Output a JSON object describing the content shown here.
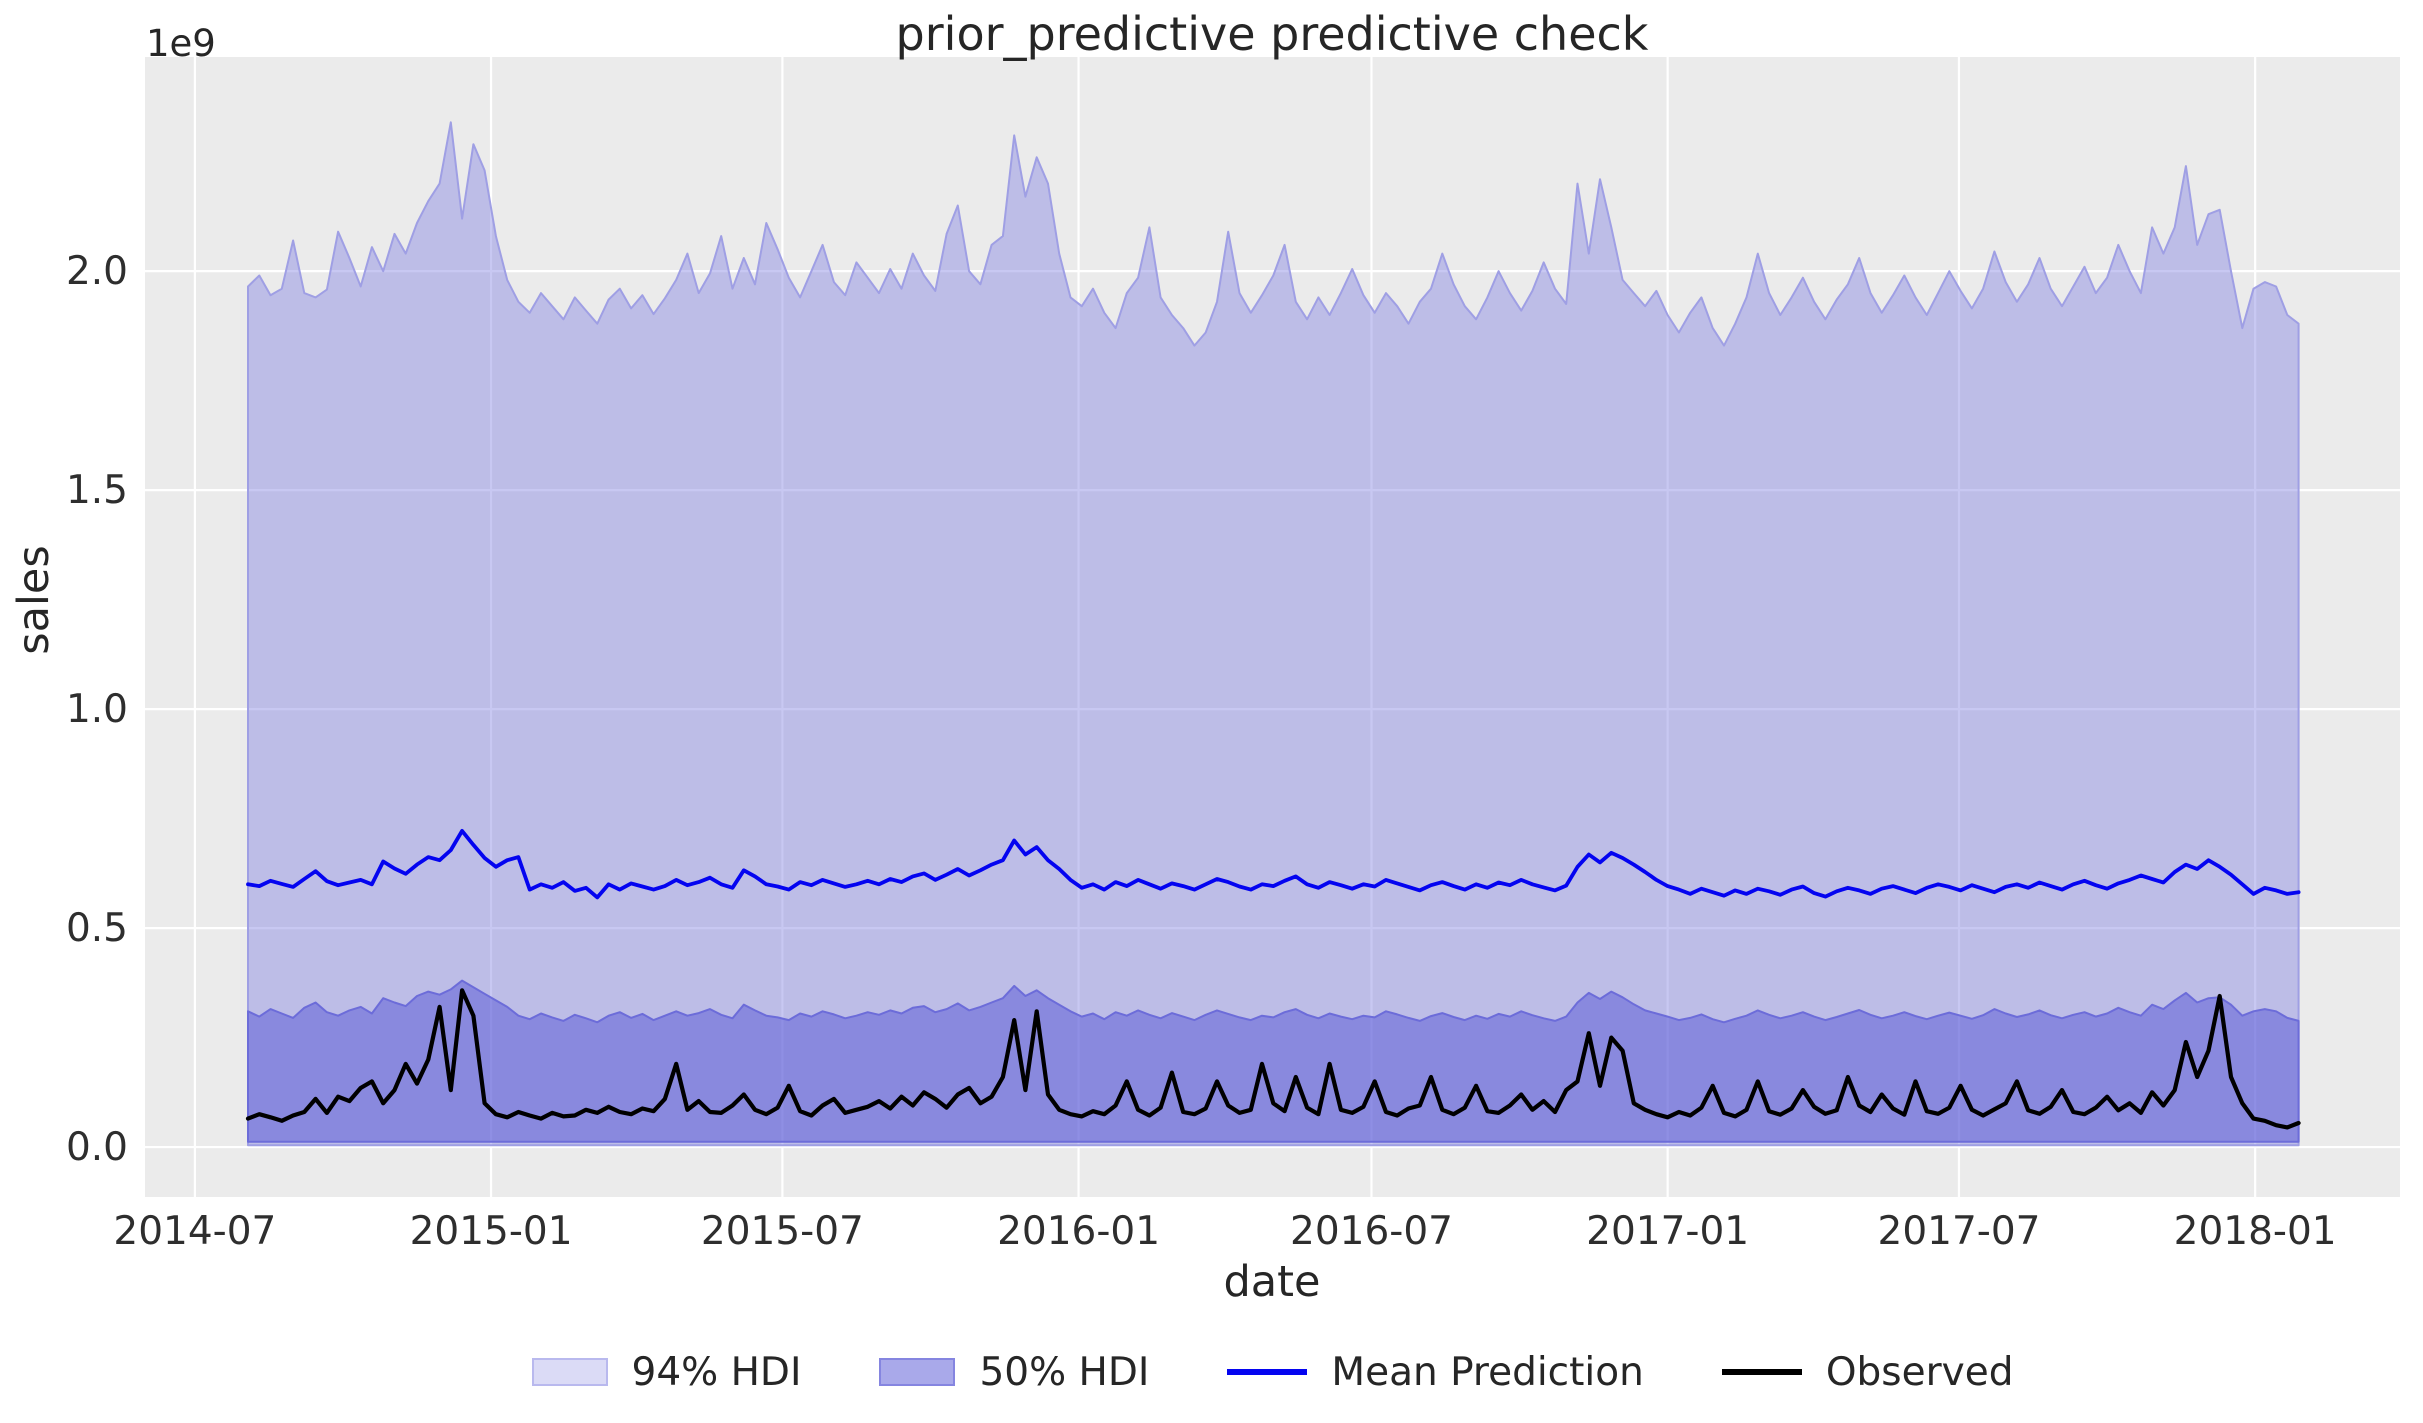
{
  "figure": {
    "background": "#ffffff",
    "axes_background": "#ebebeb",
    "grid_color": "#ffffff",
    "text_color": "#262626"
  },
  "chart_data": {
    "type": "line",
    "title": "prior_predictive predictive check",
    "xlabel": "date",
    "ylabel": "sales",
    "y_offset_label": "1e9",
    "y_unit": "1e9",
    "grid": true,
    "legend_position": "bottom-center",
    "xlim": [
      "2014-05-31",
      "2018-04-01"
    ],
    "ylim": [
      -0.114,
      2.489
    ],
    "x_ticks": [
      {
        "date": "2014-07-01",
        "label": "2014-07"
      },
      {
        "date": "2015-01-01",
        "label": "2015-01"
      },
      {
        "date": "2015-07-01",
        "label": "2015-07"
      },
      {
        "date": "2016-01-01",
        "label": "2016-01"
      },
      {
        "date": "2016-07-01",
        "label": "2016-07"
      },
      {
        "date": "2017-01-01",
        "label": "2017-01"
      },
      {
        "date": "2017-07-01",
        "label": "2017-07"
      },
      {
        "date": "2018-01-01",
        "label": "2018-01"
      }
    ],
    "y_ticks": [
      {
        "value": 0.0,
        "label": "0.0"
      },
      {
        "value": 0.5,
        "label": "0.5"
      },
      {
        "value": 1.0,
        "label": "1.0"
      },
      {
        "value": 1.5,
        "label": "1.5"
      },
      {
        "value": 2.0,
        "label": "2.0"
      }
    ],
    "x_start_date": "2014-08-03",
    "x_step_days": 7,
    "n_points": 183,
    "series": [
      {
        "name": "94% HDI",
        "kind": "band",
        "fill": "rgba(134,134,227,0.45)",
        "edge": "#9f9fe4",
        "legend_fill": "#dbdbf6",
        "legend_edge": "#b9b9ee",
        "lo_const": 0.004,
        "hi": [
          1.965,
          1.99,
          1.945,
          1.96,
          2.07,
          1.95,
          1.94,
          1.958,
          2.09,
          2.03,
          1.965,
          2.055,
          2.0,
          2.085,
          2.04,
          2.11,
          2.16,
          2.2,
          2.34,
          2.12,
          2.29,
          2.23,
          2.08,
          1.98,
          1.93,
          1.905,
          1.95,
          1.92,
          1.89,
          1.94,
          1.91,
          1.88,
          1.935,
          1.96,
          1.915,
          1.945,
          1.902,
          1.938,
          1.98,
          2.04,
          1.95,
          1.995,
          2.08,
          1.96,
          2.03,
          1.97,
          2.11,
          2.05,
          1.985,
          1.94,
          2.0,
          2.06,
          1.975,
          1.945,
          2.02,
          1.985,
          1.95,
          2.005,
          1.96,
          2.04,
          1.99,
          1.955,
          2.085,
          2.15,
          2.0,
          1.97,
          2.06,
          2.08,
          2.31,
          2.17,
          2.26,
          2.2,
          2.04,
          1.94,
          1.92,
          1.96,
          1.905,
          1.87,
          1.95,
          1.985,
          2.1,
          1.94,
          1.9,
          1.87,
          1.83,
          1.86,
          1.93,
          2.09,
          1.95,
          1.905,
          1.945,
          1.99,
          2.06,
          1.93,
          1.89,
          1.94,
          1.9,
          1.95,
          2.005,
          1.945,
          1.905,
          1.95,
          1.92,
          1.88,
          1.93,
          1.96,
          2.04,
          1.97,
          1.92,
          1.89,
          1.94,
          2.0,
          1.95,
          1.91,
          1.955,
          2.02,
          1.96,
          1.925,
          2.2,
          2.04,
          2.21,
          2.1,
          1.98,
          1.95,
          1.92,
          1.955,
          1.9,
          1.86,
          1.905,
          1.94,
          1.87,
          1.83,
          1.88,
          1.94,
          2.04,
          1.95,
          1.9,
          1.94,
          1.985,
          1.93,
          1.89,
          1.935,
          1.97,
          2.03,
          1.95,
          1.905,
          1.945,
          1.99,
          1.94,
          1.9,
          1.95,
          2.0,
          1.955,
          1.915,
          1.96,
          2.045,
          1.975,
          1.93,
          1.97,
          2.03,
          1.96,
          1.92,
          1.965,
          2.01,
          1.95,
          1.985,
          2.06,
          2.0,
          1.95,
          2.1,
          2.04,
          2.1,
          2.24,
          2.06,
          2.13,
          2.14,
          2.0,
          1.87,
          1.96,
          1.975,
          1.965,
          1.9,
          1.88
        ]
      },
      {
        "name": "50% HDI",
        "kind": "band",
        "fill": "rgba(90,90,214,0.52)",
        "edge": "#6c6cd9",
        "legend_fill": "#a9a9ea",
        "legend_edge": "#8585e0",
        "lo_const": 0.012,
        "hi": [
          0.31,
          0.298,
          0.315,
          0.305,
          0.295,
          0.318,
          0.33,
          0.308,
          0.3,
          0.312,
          0.32,
          0.305,
          0.34,
          0.33,
          0.322,
          0.345,
          0.355,
          0.348,
          0.36,
          0.38,
          0.365,
          0.35,
          0.335,
          0.32,
          0.3,
          0.292,
          0.305,
          0.296,
          0.288,
          0.302,
          0.294,
          0.285,
          0.3,
          0.308,
          0.295,
          0.304,
          0.29,
          0.3,
          0.31,
          0.3,
          0.306,
          0.315,
          0.302,
          0.294,
          0.325,
          0.312,
          0.3,
          0.296,
          0.29,
          0.305,
          0.298,
          0.31,
          0.303,
          0.294,
          0.3,
          0.308,
          0.302,
          0.312,
          0.305,
          0.318,
          0.322,
          0.308,
          0.315,
          0.328,
          0.312,
          0.32,
          0.33,
          0.34,
          0.368,
          0.345,
          0.358,
          0.34,
          0.325,
          0.31,
          0.298,
          0.305,
          0.292,
          0.308,
          0.3,
          0.312,
          0.302,
          0.294,
          0.306,
          0.298,
          0.29,
          0.302,
          0.312,
          0.304,
          0.296,
          0.29,
          0.3,
          0.296,
          0.308,
          0.315,
          0.302,
          0.294,
          0.305,
          0.298,
          0.292,
          0.3,
          0.296,
          0.31,
          0.303,
          0.295,
          0.288,
          0.299,
          0.306,
          0.297,
          0.29,
          0.3,
          0.293,
          0.304,
          0.298,
          0.31,
          0.301,
          0.294,
          0.288,
          0.298,
          0.33,
          0.352,
          0.338,
          0.355,
          0.342,
          0.326,
          0.312,
          0.305,
          0.298,
          0.29,
          0.295,
          0.303,
          0.292,
          0.285,
          0.293,
          0.3,
          0.312,
          0.302,
          0.294,
          0.3,
          0.308,
          0.298,
          0.29,
          0.297,
          0.305,
          0.313,
          0.302,
          0.294,
          0.3,
          0.308,
          0.299,
          0.292,
          0.3,
          0.307,
          0.3,
          0.293,
          0.301,
          0.315,
          0.305,
          0.297,
          0.303,
          0.312,
          0.301,
          0.294,
          0.302,
          0.308,
          0.298,
          0.305,
          0.318,
          0.308,
          0.3,
          0.325,
          0.315,
          0.335,
          0.352,
          0.33,
          0.34,
          0.342,
          0.325,
          0.3,
          0.31,
          0.315,
          0.31,
          0.295,
          0.288
        ]
      },
      {
        "name": "Mean Prediction",
        "kind": "line",
        "color": "#0404f0",
        "values": [
          0.6,
          0.596,
          0.608,
          0.601,
          0.594,
          0.612,
          0.63,
          0.607,
          0.598,
          0.604,
          0.61,
          0.6,
          0.652,
          0.636,
          0.624,
          0.645,
          0.662,
          0.655,
          0.678,
          0.722,
          0.69,
          0.66,
          0.64,
          0.655,
          0.662,
          0.588,
          0.6,
          0.592,
          0.605,
          0.585,
          0.592,
          0.57,
          0.6,
          0.588,
          0.602,
          0.595,
          0.588,
          0.596,
          0.61,
          0.598,
          0.605,
          0.615,
          0.6,
          0.592,
          0.632,
          0.618,
          0.6,
          0.595,
          0.588,
          0.605,
          0.598,
          0.61,
          0.602,
          0.594,
          0.6,
          0.608,
          0.6,
          0.612,
          0.605,
          0.618,
          0.625,
          0.61,
          0.622,
          0.635,
          0.62,
          0.632,
          0.645,
          0.655,
          0.7,
          0.668,
          0.685,
          0.655,
          0.635,
          0.61,
          0.592,
          0.6,
          0.588,
          0.605,
          0.596,
          0.61,
          0.6,
          0.59,
          0.602,
          0.596,
          0.588,
          0.6,
          0.612,
          0.605,
          0.595,
          0.588,
          0.6,
          0.596,
          0.608,
          0.618,
          0.6,
          0.592,
          0.605,
          0.598,
          0.59,
          0.6,
          0.595,
          0.61,
          0.602,
          0.594,
          0.586,
          0.598,
          0.605,
          0.596,
          0.588,
          0.6,
          0.592,
          0.604,
          0.598,
          0.61,
          0.6,
          0.593,
          0.586,
          0.597,
          0.64,
          0.668,
          0.65,
          0.672,
          0.66,
          0.645,
          0.628,
          0.61,
          0.596,
          0.588,
          0.578,
          0.59,
          0.582,
          0.574,
          0.586,
          0.578,
          0.59,
          0.584,
          0.576,
          0.588,
          0.595,
          0.58,
          0.572,
          0.584,
          0.592,
          0.586,
          0.578,
          0.59,
          0.596,
          0.588,
          0.58,
          0.592,
          0.6,
          0.594,
          0.586,
          0.598,
          0.59,
          0.582,
          0.594,
          0.6,
          0.592,
          0.604,
          0.596,
          0.588,
          0.6,
          0.608,
          0.598,
          0.59,
          0.602,
          0.61,
          0.62,
          0.612,
          0.604,
          0.628,
          0.645,
          0.635,
          0.655,
          0.64,
          0.622,
          0.6,
          0.578,
          0.592,
          0.586,
          0.578,
          0.582
        ]
      },
      {
        "name": "Observed",
        "kind": "line",
        "color": "#000000",
        "values": [
          0.065,
          0.075,
          0.068,
          0.06,
          0.072,
          0.08,
          0.11,
          0.078,
          0.115,
          0.105,
          0.135,
          0.15,
          0.1,
          0.13,
          0.19,
          0.145,
          0.2,
          0.32,
          0.13,
          0.358,
          0.3,
          0.1,
          0.075,
          0.068,
          0.08,
          0.072,
          0.065,
          0.078,
          0.07,
          0.072,
          0.085,
          0.078,
          0.092,
          0.08,
          0.075,
          0.088,
          0.082,
          0.11,
          0.19,
          0.085,
          0.105,
          0.08,
          0.078,
          0.095,
          0.12,
          0.085,
          0.075,
          0.09,
          0.14,
          0.082,
          0.072,
          0.095,
          0.11,
          0.078,
          0.085,
          0.092,
          0.105,
          0.088,
          0.115,
          0.095,
          0.125,
          0.11,
          0.09,
          0.12,
          0.135,
          0.1,
          0.115,
          0.16,
          0.29,
          0.13,
          0.31,
          0.12,
          0.085,
          0.075,
          0.07,
          0.082,
          0.075,
          0.095,
          0.15,
          0.085,
          0.072,
          0.09,
          0.17,
          0.08,
          0.075,
          0.088,
          0.15,
          0.095,
          0.078,
          0.085,
          0.19,
          0.1,
          0.082,
          0.16,
          0.09,
          0.075,
          0.19,
          0.085,
          0.078,
          0.092,
          0.15,
          0.08,
          0.072,
          0.088,
          0.095,
          0.16,
          0.085,
          0.075,
          0.09,
          0.14,
          0.082,
          0.078,
          0.095,
          0.12,
          0.085,
          0.105,
          0.08,
          0.13,
          0.15,
          0.26,
          0.14,
          0.25,
          0.22,
          0.1,
          0.085,
          0.075,
          0.068,
          0.08,
          0.072,
          0.09,
          0.14,
          0.078,
          0.07,
          0.085,
          0.15,
          0.082,
          0.074,
          0.088,
          0.13,
          0.092,
          0.076,
          0.084,
          0.16,
          0.095,
          0.08,
          0.12,
          0.088,
          0.074,
          0.15,
          0.082,
          0.076,
          0.09,
          0.14,
          0.085,
          0.072,
          0.086,
          0.1,
          0.15,
          0.084,
          0.076,
          0.092,
          0.13,
          0.08,
          0.075,
          0.09,
          0.115,
          0.084,
          0.1,
          0.078,
          0.125,
          0.095,
          0.13,
          0.24,
          0.16,
          0.22,
          0.345,
          0.16,
          0.1,
          0.065,
          0.06,
          0.05,
          0.045,
          0.055
        ]
      }
    ]
  }
}
